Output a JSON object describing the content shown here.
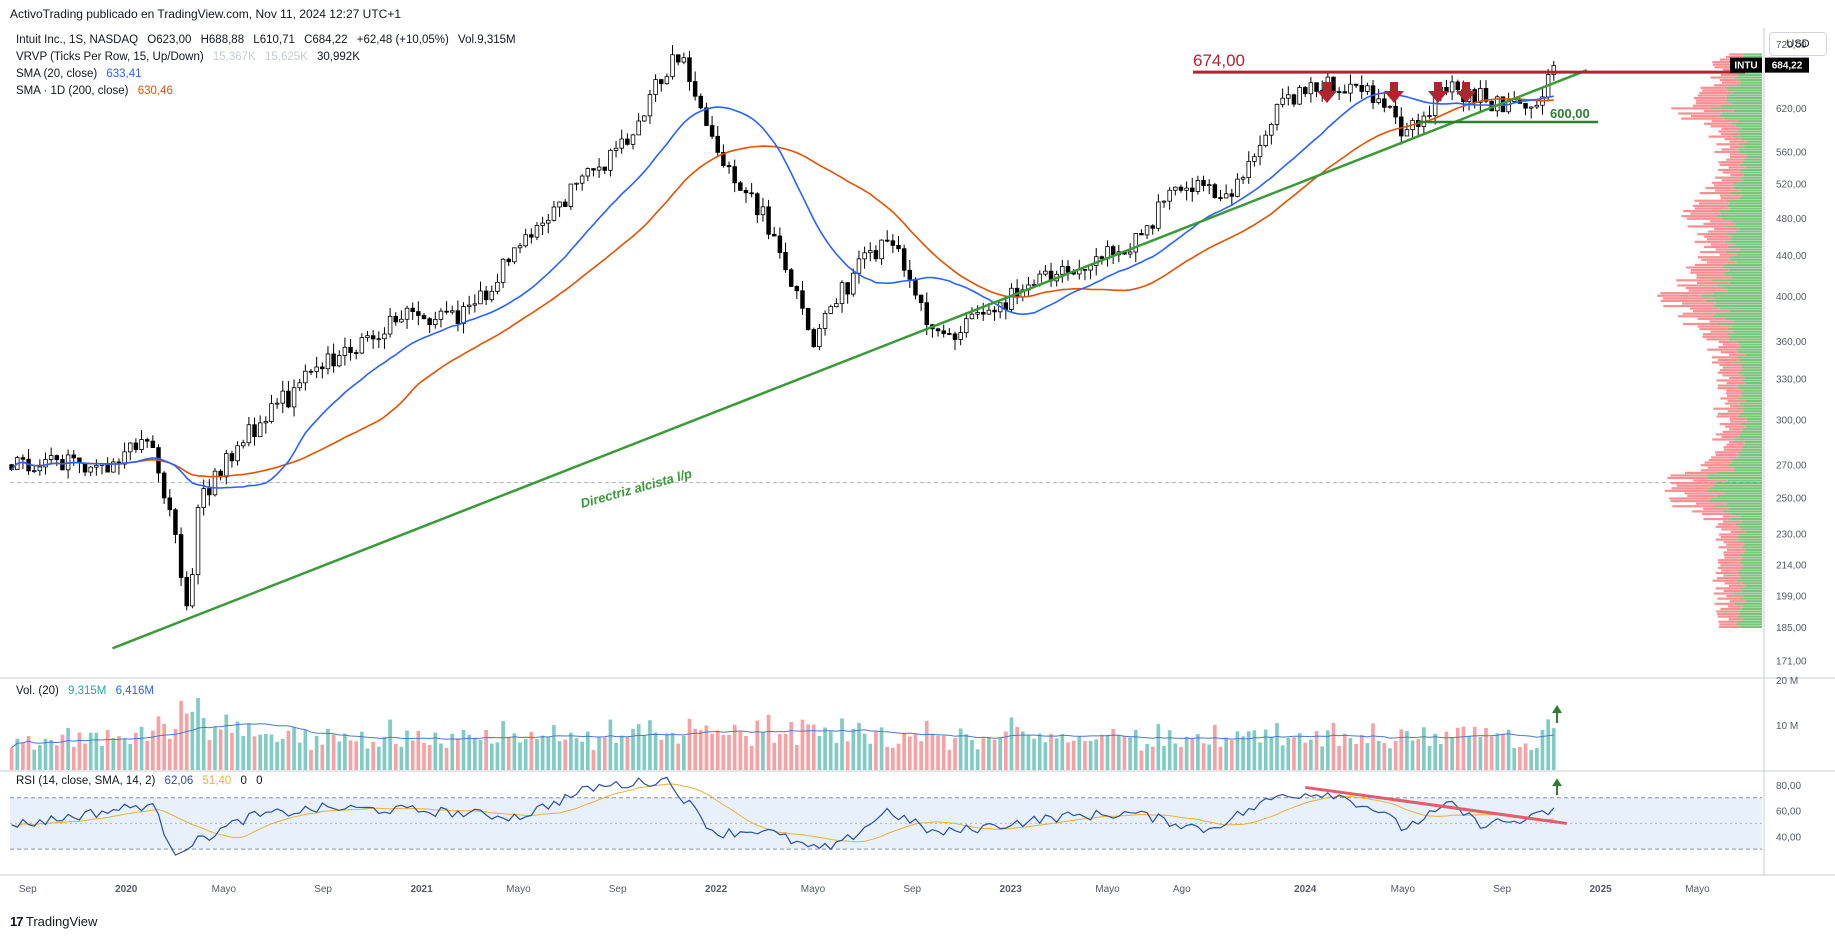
{
  "header": {
    "text": "ActivoTrading publicado en TradingView.com, Nov 11, 2024 12:27 UTC+1"
  },
  "legend": {
    "main": [
      "Intuit Inc., 1S, NASDAQ",
      "O623,00",
      "H688,88",
      "L610,71",
      "C684,22",
      "+62,48 (+10,05%)",
      "Vol.9,315M"
    ],
    "vrvp_label": "VRVP (Ticks Per Row, 15, Up/Down)",
    "vrvp_vals": [
      "15,367K",
      "15,625K",
      "30,992K"
    ],
    "sma20_label": "SMA (20, close)",
    "sma20_val": "633,41",
    "sma200_label": "SMA · 1D (200, close)",
    "sma200_val": "630,46",
    "vol_label": "Vol. (20)",
    "vol_vals": [
      "9,315M",
      "6,416M"
    ],
    "rsi_label": "RSI (14, close, SMA, 14, 2)",
    "rsi_vals": [
      "62,06",
      "51,40",
      "0",
      "0"
    ]
  },
  "currency_button": "USD",
  "footer_brand": "TradingView",
  "colors": {
    "up": "#26a69a",
    "down": "#ef5350",
    "sma20": "#2962ff",
    "sma200": "#e65100",
    "trend": "#3a9a3a",
    "resistance": "#b2222f",
    "rsi": "#2a4fa8",
    "rsi_ma": "#e8b23a"
  },
  "icons": {
    "arrows": "arrow-down-icon",
    "vol_up": "arrow-up-icon",
    "logo": "tradingview-logo-icon"
  },
  "chart_data": [
    {
      "type": "candlestick",
      "title": "Intuit Inc., 1S, NASDAQ",
      "x_ticks": [
        "Sep",
        "2020",
        "Mayo",
        "Sep",
        "2021",
        "Mayo",
        "Sep",
        "2022",
        "Mayo",
        "Sep",
        "2023",
        "Mayo",
        "Ago",
        "2024",
        "Mayo",
        "Sep",
        "2025",
        "Mayo"
      ],
      "y_ticks": [
        "720,00",
        "620,00",
        "560,00",
        "520,00",
        "480,00",
        "440,00",
        "400,00",
        "360,00",
        "330,00",
        "300,00",
        "270,00",
        "250,00",
        "230,00",
        "214,00",
        "199,00",
        "185,00",
        "171,00"
      ],
      "y_scale": "log",
      "ylim": [
        165,
        740
      ],
      "last_price": {
        "symbol": "INTU",
        "value": "684,22"
      },
      "series": [
        {
          "name": "Intuit price",
          "anchors": [
            [
              "2019-09",
              270
            ],
            [
              "2019-12",
              270
            ],
            [
              "2020-02",
              285
            ],
            [
              "2020-03-20",
              190
            ],
            [
              "2020-04",
              250
            ],
            [
              "2020-06",
              290
            ],
            [
              "2020-09",
              340
            ],
            [
              "2020-12",
              380
            ],
            [
              "2021-03",
              385
            ],
            [
              "2021-06",
              480
            ],
            [
              "2021-09",
              560
            ],
            [
              "2021-11-15",
              705
            ],
            [
              "2022-01",
              560
            ],
            [
              "2022-03",
              480
            ],
            [
              "2022-05",
              360
            ],
            [
              "2022-06",
              400
            ],
            [
              "2022-08",
              460
            ],
            [
              "2022-10",
              360
            ],
            [
              "2023-01",
              400
            ],
            [
              "2023-03",
              420
            ],
            [
              "2023-06",
              450
            ],
            [
              "2023-08",
              520
            ],
            [
              "2023-10",
              500
            ],
            [
              "2023-12",
              620
            ],
            [
              "2024-02",
              660
            ],
            [
              "2024-04",
              640
            ],
            [
              "2024-05",
              590
            ],
            [
              "2024-07",
              650
            ],
            [
              "2024-09",
              625
            ],
            [
              "2024-10",
              615
            ],
            [
              "2024-11-08",
              684.22
            ]
          ]
        },
        {
          "name": "SMA (20, close)",
          "last": 633.41
        },
        {
          "name": "SMA · 1D (200, close)",
          "last": 630.46
        }
      ],
      "annotations": [
        {
          "type": "horizontal-segment",
          "label": "674,00",
          "value": 674
        },
        {
          "type": "horizontal-segment",
          "label": "600,00",
          "value": 600
        },
        {
          "type": "trendline",
          "label": "Directriz alcista l/p",
          "from": [
            "2020-03-20",
            180
          ],
          "to": [
            "2024-12-15",
            677
          ]
        },
        {
          "type": "markers",
          "count": 4,
          "value": 674
        }
      ]
    },
    {
      "type": "bar",
      "title": "Vol. (20)",
      "y_ticks": [
        "20 M",
        "10 M"
      ],
      "ylim": [
        0,
        20
      ],
      "last": 9.315,
      "ma_last": 6.416
    },
    {
      "type": "line",
      "title": "RSI (14, close, SMA, 14, 2)",
      "y_ticks": [
        "80,00",
        "60,00",
        "40,00"
      ],
      "ylim": [
        20,
        90
      ],
      "bands": [
        30,
        70
      ],
      "series": [
        {
          "name": "RSI",
          "last": 62.06,
          "anchors": [
            [
              "2019-09",
              50
            ],
            [
              "2020-02",
              65
            ],
            [
              "2020-03",
              28
            ],
            [
              "2020-06",
              55
            ],
            [
              "2020-09",
              62
            ],
            [
              "2021-01",
              60
            ],
            [
              "2021-05",
              55
            ],
            [
              "2021-08",
              78
            ],
            [
              "2021-11",
              84
            ],
            [
              "2022-01",
              42
            ],
            [
              "2022-03",
              45
            ],
            [
              "2022-05",
              30
            ],
            [
              "2022-06",
              32
            ],
            [
              "2022-08",
              60
            ],
            [
              "2022-10",
              42
            ],
            [
              "2023-01",
              50
            ],
            [
              "2023-03",
              55
            ],
            [
              "2023-06",
              58
            ],
            [
              "2023-09",
              45
            ],
            [
              "2023-12",
              72
            ],
            [
              "2024-02",
              74
            ],
            [
              "2024-04",
              60
            ],
            [
              "2024-05",
              46
            ],
            [
              "2024-07",
              65
            ],
            [
              "2024-08",
              50
            ],
            [
              "2024-10",
              52
            ],
            [
              "2024-11-08",
              62.06
            ]
          ]
        },
        {
          "name": "RSI MA",
          "last": 51.4
        }
      ],
      "annotations": [
        {
          "type": "trendline",
          "from": [
            "2024-01",
            78
          ],
          "to": [
            "2024-11-20",
            50
          ]
        }
      ]
    }
  ]
}
